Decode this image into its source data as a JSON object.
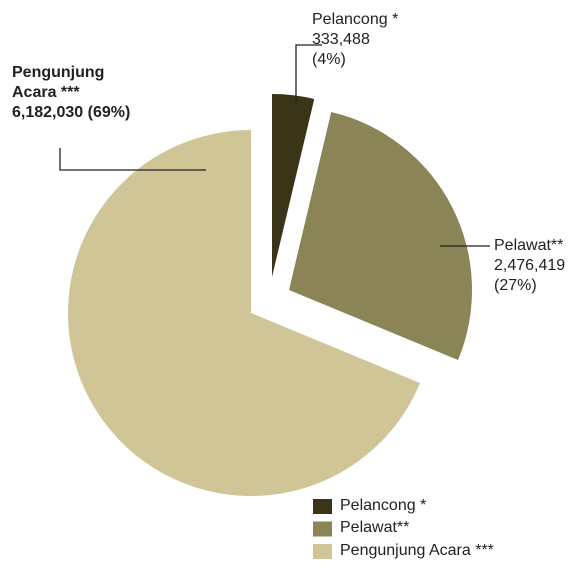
{
  "chart_data": {
    "type": "pie",
    "categories": [
      "Pelancong *",
      "Pelawat**",
      "Pengunjung Acara ***"
    ],
    "values": [
      333488,
      2476419,
      6182030
    ],
    "value_labels": [
      "333,488",
      "2,476,419",
      "6,182,030"
    ],
    "percents": [
      4,
      27,
      69
    ],
    "percent_labels": [
      "(4%)",
      "(27%)",
      "(69%)"
    ],
    "colors": [
      "#3a3419",
      "#8b8456",
      "#cfc597"
    ],
    "legend": "bottom-right"
  }
}
